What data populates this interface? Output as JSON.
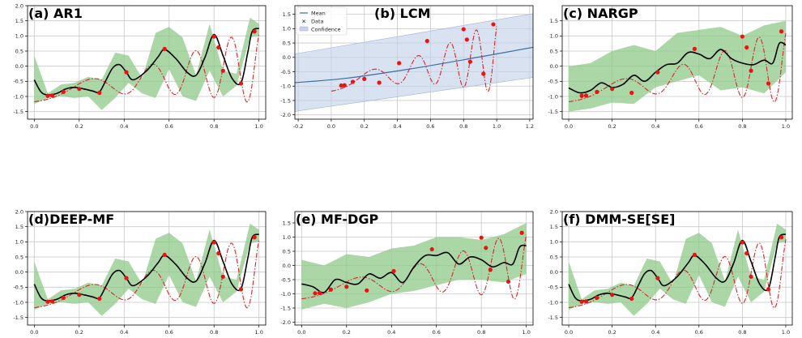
{
  "chart_data": [
    {
      "type": "line",
      "title": "(a) AR1",
      "xlim": [
        -0.03,
        1.03
      ],
      "ylim": [
        -1.75,
        2.0
      ],
      "xticks": [
        "0.0",
        "0.2",
        "0.4",
        "0.6",
        "0.8",
        "1.0"
      ],
      "yticks": [
        "-1.5",
        "-1.0",
        "-0.5",
        "0.0",
        "0.5",
        "1.0",
        "1.5",
        "2.0"
      ],
      "grid": true,
      "colors": {
        "truth": "#d62728",
        "mean": "#000000",
        "band": "#8fc98a",
        "data": "#ee1111"
      },
      "band_x": [
        0,
        0.06,
        0.12,
        0.18,
        0.24,
        0.3,
        0.36,
        0.42,
        0.48,
        0.54,
        0.6,
        0.66,
        0.72,
        0.78,
        0.84,
        0.9,
        0.96,
        1.0
      ],
      "band_lower": [
        -1.25,
        -1.05,
        -1.0,
        -1.05,
        -1.0,
        -1.45,
        -1.05,
        -0.55,
        -0.9,
        -1.05,
        -0.1,
        -1.0,
        -1.15,
        -0.15,
        -1.0,
        -0.65,
        0.95,
        1.0
      ],
      "band_upper": [
        0.35,
        -0.9,
        -0.6,
        -0.55,
        -0.35,
        -0.45,
        0.45,
        0.35,
        -0.4,
        1.1,
        1.3,
        0.95,
        -0.3,
        1.4,
        -0.15,
        -0.25,
        1.6,
        1.4
      ],
      "mean_x": [
        0,
        0.03,
        0.06,
        0.1,
        0.14,
        0.18,
        0.22,
        0.26,
        0.29,
        0.32,
        0.35,
        0.38,
        0.41,
        0.44,
        0.5,
        0.55,
        0.58,
        0.63,
        0.68,
        0.72,
        0.76,
        0.8,
        0.84,
        0.88,
        0.92,
        0.95,
        0.97,
        1.0
      ],
      "mean_y": [
        -0.45,
        -0.85,
        -0.95,
        -0.9,
        -0.75,
        -0.7,
        -0.75,
        -0.82,
        -0.85,
        -0.45,
        -0.05,
        0.05,
        -0.2,
        -0.45,
        -0.15,
        0.3,
        0.55,
        0.25,
        -0.2,
        -0.3,
        0.3,
        1.05,
        0.35,
        -0.4,
        -0.55,
        0.45,
        1.15,
        1.25
      ],
      "points_x": [
        0.06,
        0.08,
        0.13,
        0.2,
        0.29,
        0.41,
        0.58,
        0.8,
        0.82,
        0.84,
        0.92,
        0.98
      ],
      "points_y": [
        -0.98,
        -0.97,
        -0.85,
        -0.75,
        -0.88,
        -0.2,
        0.57,
        0.98,
        0.62,
        -0.15,
        -0.57,
        1.15
      ]
    },
    {
      "type": "line",
      "title": "(b) LCM",
      "xlim": [
        -0.22,
        1.22
      ],
      "ylim": [
        -2.15,
        1.8
      ],
      "xticks": [
        "-0.2",
        "0.0",
        "0.2",
        "0.4",
        "0.6",
        "0.8",
        "1.0",
        "1.2"
      ],
      "yticks": [
        "-2.0",
        "-1.5",
        "-1.0",
        "-0.5",
        "0.0",
        "0.5",
        "1.0",
        "1.5"
      ],
      "grid": true,
      "legend": {
        "placement": "top-left",
        "entries": [
          "Mean",
          "Data",
          "Confidence"
        ]
      },
      "colors": {
        "truth": "#d62728",
        "mean": "#3b6ea5",
        "band": "#c5d3ea",
        "data": "#ee1111"
      },
      "band_x": [
        -0.22,
        1.22
      ],
      "band_lower": [
        -1.88,
        -0.7
      ],
      "band_upper": [
        0.12,
        1.52
      ],
      "mean_x": [
        -0.22,
        0.1,
        0.5,
        0.9,
        1.22
      ],
      "mean_y": [
        -0.88,
        -0.72,
        -0.38,
        0.02,
        0.35
      ],
      "points_x": [
        0.06,
        0.08,
        0.13,
        0.2,
        0.29,
        0.41,
        0.58,
        0.8,
        0.82,
        0.84,
        0.92,
        0.98
      ],
      "points_y": [
        -0.98,
        -0.97,
        -0.85,
        -0.75,
        -0.88,
        -0.2,
        0.57,
        0.98,
        0.62,
        -0.15,
        -0.57,
        1.15
      ]
    },
    {
      "type": "line",
      "title": "(c) NARGP",
      "xlim": [
        -0.03,
        1.03
      ],
      "ylim": [
        -1.75,
        2.0
      ],
      "xticks": [
        "0.0",
        "0.2",
        "0.4",
        "0.6",
        "0.8",
        "1.0"
      ],
      "yticks": [
        "-1.5",
        "-1.0",
        "-0.5",
        "0.0",
        "0.5",
        "1.0",
        "1.5"
      ],
      "grid": true,
      "colors": {
        "truth": "#d62728",
        "mean": "#000000",
        "band": "#8fc98a",
        "data": "#ee1111"
      },
      "band_x": [
        0,
        0.1,
        0.2,
        0.3,
        0.4,
        0.5,
        0.6,
        0.7,
        0.8,
        0.9,
        1.0
      ],
      "band_lower": [
        -1.5,
        -1.4,
        -1.2,
        -1.25,
        -0.7,
        -0.5,
        -0.3,
        -0.8,
        -0.7,
        -0.9,
        -0.2
      ],
      "band_upper": [
        0.0,
        0.1,
        0.5,
        0.7,
        0.5,
        1.1,
        1.2,
        1.3,
        1.0,
        1.35,
        1.5
      ],
      "mean_x": [
        0,
        0.05,
        0.1,
        0.15,
        0.2,
        0.25,
        0.3,
        0.35,
        0.4,
        0.45,
        0.5,
        0.55,
        0.6,
        0.65,
        0.7,
        0.75,
        0.8,
        0.85,
        0.9,
        0.94,
        0.97,
        1.0
      ],
      "mean_y": [
        -0.72,
        -0.88,
        -0.8,
        -0.55,
        -0.7,
        -0.6,
        -0.3,
        -0.5,
        -0.2,
        0.05,
        0.1,
        0.45,
        0.4,
        0.25,
        0.55,
        0.25,
        0.1,
        0.05,
        0.2,
        0.1,
        0.75,
        0.7
      ],
      "points_x": [
        0.06,
        0.08,
        0.13,
        0.2,
        0.29,
        0.41,
        0.58,
        0.8,
        0.82,
        0.84,
        0.92,
        0.98
      ],
      "points_y": [
        -0.98,
        -0.97,
        -0.85,
        -0.75,
        -0.88,
        -0.2,
        0.57,
        0.98,
        0.62,
        -0.15,
        -0.57,
        1.15
      ]
    },
    {
      "type": "line",
      "title": "(d)DEEP-MF",
      "xlim": [
        -0.03,
        1.03
      ],
      "ylim": [
        -1.75,
        2.0
      ],
      "xticks": [
        "0.0",
        "0.2",
        "0.4",
        "0.6",
        "0.8",
        "1.0"
      ],
      "yticks": [
        "-1.5",
        "-1.0",
        "-0.5",
        "0.0",
        "0.5",
        "1.0",
        "1.5",
        "2.0"
      ],
      "grid": true,
      "colors": {
        "truth": "#d62728",
        "mean": "#000000",
        "band": "#8fc98a",
        "data": "#ee1111"
      },
      "band_x": [
        0,
        0.06,
        0.12,
        0.18,
        0.24,
        0.3,
        0.36,
        0.42,
        0.48,
        0.54,
        0.6,
        0.66,
        0.72,
        0.78,
        0.84,
        0.9,
        0.96,
        1.0
      ],
      "band_lower": [
        -1.25,
        -1.05,
        -1.0,
        -1.05,
        -1.0,
        -1.45,
        -1.05,
        -0.55,
        -0.9,
        -1.05,
        -0.1,
        -1.0,
        -1.15,
        -0.15,
        -1.0,
        -0.65,
        0.95,
        1.0
      ],
      "band_upper": [
        0.35,
        -0.9,
        -0.6,
        -0.55,
        -0.35,
        -0.45,
        0.45,
        0.35,
        -0.4,
        1.1,
        1.3,
        0.95,
        -0.3,
        1.4,
        -0.15,
        -0.25,
        1.6,
        1.4
      ],
      "mean_x": [
        0,
        0.03,
        0.06,
        0.1,
        0.14,
        0.18,
        0.22,
        0.26,
        0.29,
        0.32,
        0.35,
        0.38,
        0.41,
        0.44,
        0.5,
        0.55,
        0.58,
        0.63,
        0.68,
        0.72,
        0.76,
        0.8,
        0.84,
        0.88,
        0.92,
        0.95,
        0.97,
        1.0
      ],
      "mean_y": [
        -0.4,
        -0.85,
        -0.95,
        -0.9,
        -0.75,
        -0.7,
        -0.75,
        -0.82,
        -0.85,
        -0.45,
        -0.05,
        0.05,
        -0.2,
        -0.45,
        -0.15,
        0.3,
        0.55,
        0.25,
        -0.2,
        -0.3,
        0.3,
        1.05,
        0.35,
        -0.4,
        -0.55,
        0.45,
        1.15,
        1.25
      ],
      "points_x": [
        0.06,
        0.08,
        0.13,
        0.2,
        0.29,
        0.41,
        0.58,
        0.8,
        0.82,
        0.84,
        0.92,
        0.98
      ],
      "points_y": [
        -0.98,
        -0.97,
        -0.85,
        -0.75,
        -0.88,
        -0.2,
        0.57,
        0.98,
        0.62,
        -0.15,
        -0.57,
        1.15
      ]
    },
    {
      "type": "line",
      "title": "(e) MF-DGP",
      "xlim": [
        -0.03,
        1.03
      ],
      "ylim": [
        -2.1,
        1.9
      ],
      "xticks": [
        "0.0",
        "0.2",
        "0.4",
        "0.6",
        "0.8",
        "1.0"
      ],
      "yticks": [
        "-2.0",
        "-1.5",
        "-1.0",
        "-0.5",
        "0.0",
        "0.5",
        "1.0",
        "1.5"
      ],
      "grid": true,
      "colors": {
        "truth": "#d62728",
        "mean": "#000000",
        "band": "#8fc98a",
        "data": "#ee1111"
      },
      "band_x": [
        0,
        0.1,
        0.2,
        0.3,
        0.4,
        0.5,
        0.6,
        0.7,
        0.8,
        0.9,
        1.0
      ],
      "band_lower": [
        -1.55,
        -1.35,
        -1.5,
        -1.3,
        -1.0,
        -0.9,
        -0.7,
        -0.5,
        -0.5,
        -0.6,
        -0.3
      ],
      "band_upper": [
        0.2,
        0.0,
        0.4,
        0.3,
        0.6,
        0.7,
        1.0,
        1.0,
        0.9,
        1.1,
        1.5
      ],
      "mean_x": [
        0,
        0.05,
        0.1,
        0.15,
        0.2,
        0.25,
        0.3,
        0.35,
        0.4,
        0.45,
        0.5,
        0.55,
        0.6,
        0.65,
        0.7,
        0.75,
        0.8,
        0.85,
        0.9,
        0.94,
        0.97,
        1.0
      ],
      "mean_y": [
        -0.65,
        -0.75,
        -0.95,
        -0.5,
        -0.6,
        -0.65,
        -0.3,
        -0.45,
        -0.25,
        -0.6,
        -0.05,
        0.35,
        0.35,
        0.45,
        0.05,
        0.3,
        0.2,
        -0.05,
        0.1,
        0.05,
        0.65,
        0.7
      ],
      "points_x": [
        0.06,
        0.08,
        0.13,
        0.2,
        0.29,
        0.41,
        0.58,
        0.8,
        0.82,
        0.84,
        0.92,
        0.98
      ],
      "points_y": [
        -0.98,
        -0.97,
        -0.85,
        -0.75,
        -0.88,
        -0.2,
        0.57,
        0.98,
        0.62,
        -0.15,
        -0.57,
        1.15
      ]
    },
    {
      "type": "line",
      "title": "(f) DMM-SE[SE]",
      "xlim": [
        -0.03,
        1.03
      ],
      "ylim": [
        -1.75,
        2.0
      ],
      "xticks": [
        "0.0",
        "0.2",
        "0.4",
        "0.6",
        "0.8",
        "1.0"
      ],
      "yticks": [
        "-1.5",
        "-1.0",
        "-0.5",
        "0.0",
        "0.5",
        "1.0",
        "1.5",
        "2.0"
      ],
      "grid": true,
      "colors": {
        "truth": "#d62728",
        "mean": "#000000",
        "band": "#8fc98a",
        "data": "#ee1111"
      },
      "band_x": [
        0,
        0.06,
        0.12,
        0.18,
        0.24,
        0.3,
        0.36,
        0.42,
        0.48,
        0.54,
        0.6,
        0.66,
        0.72,
        0.78,
        0.84,
        0.9,
        0.96,
        1.0
      ],
      "band_lower": [
        -1.25,
        -1.05,
        -1.0,
        -1.05,
        -1.0,
        -1.45,
        -1.05,
        -0.55,
        -0.9,
        -1.05,
        -0.1,
        -1.0,
        -1.15,
        -0.15,
        -1.0,
        -0.65,
        0.95,
        1.0
      ],
      "band_upper": [
        0.35,
        -0.9,
        -0.6,
        -0.55,
        -0.35,
        -0.45,
        0.45,
        0.35,
        -0.4,
        1.1,
        1.3,
        0.95,
        -0.3,
        1.4,
        -0.15,
        -0.25,
        1.6,
        1.4
      ],
      "mean_x": [
        0,
        0.03,
        0.06,
        0.1,
        0.14,
        0.18,
        0.22,
        0.26,
        0.29,
        0.32,
        0.35,
        0.38,
        0.41,
        0.44,
        0.5,
        0.55,
        0.58,
        0.63,
        0.68,
        0.72,
        0.76,
        0.8,
        0.84,
        0.88,
        0.92,
        0.95,
        0.97,
        1.0
      ],
      "mean_y": [
        -0.4,
        -0.85,
        -0.95,
        -0.9,
        -0.75,
        -0.7,
        -0.75,
        -0.82,
        -0.85,
        -0.45,
        -0.05,
        0.05,
        -0.2,
        -0.45,
        -0.15,
        0.3,
        0.55,
        0.25,
        -0.2,
        -0.3,
        0.3,
        1.05,
        0.35,
        -0.4,
        -0.55,
        0.45,
        1.15,
        1.25
      ],
      "points_x": [
        0.06,
        0.08,
        0.13,
        0.2,
        0.29,
        0.41,
        0.58,
        0.8,
        0.82,
        0.84,
        0.92,
        0.98
      ],
      "points_y": [
        -0.98,
        -0.97,
        -0.85,
        -0.75,
        -0.88,
        -0.2,
        0.57,
        0.98,
        0.62,
        -0.15,
        -0.57,
        1.15
      ]
    }
  ]
}
